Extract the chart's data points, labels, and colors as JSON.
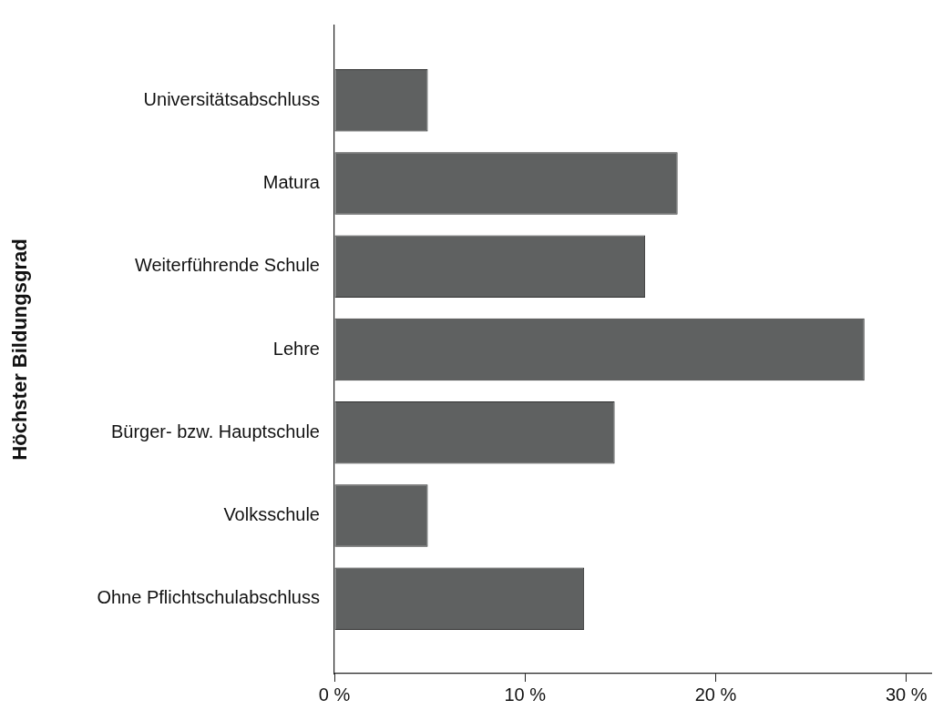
{
  "chart_data": {
    "type": "bar",
    "orientation": "horizontal",
    "ylabel": "Höchster Bildungsgrad",
    "categories": [
      "Universitätsabschluss",
      "Matura",
      "Weiterführende Schule",
      "Lehre",
      "Bürger- bzw. Hauptschule",
      "Volksschule",
      "Ohne Pflichtschulabschluss"
    ],
    "values": [
      4.9,
      18.0,
      16.3,
      27.8,
      14.7,
      4.9,
      13.1
    ],
    "color": "#5f6161",
    "xlim": [
      0,
      31.3
    ],
    "xticks": [
      {
        "value": 0,
        "label": "0 %"
      },
      {
        "value": 10,
        "label": "10 %"
      },
      {
        "value": 20,
        "label": "20 %"
      },
      {
        "value": 30,
        "label": "30 %"
      }
    ],
    "grid": false,
    "legend": false
  }
}
